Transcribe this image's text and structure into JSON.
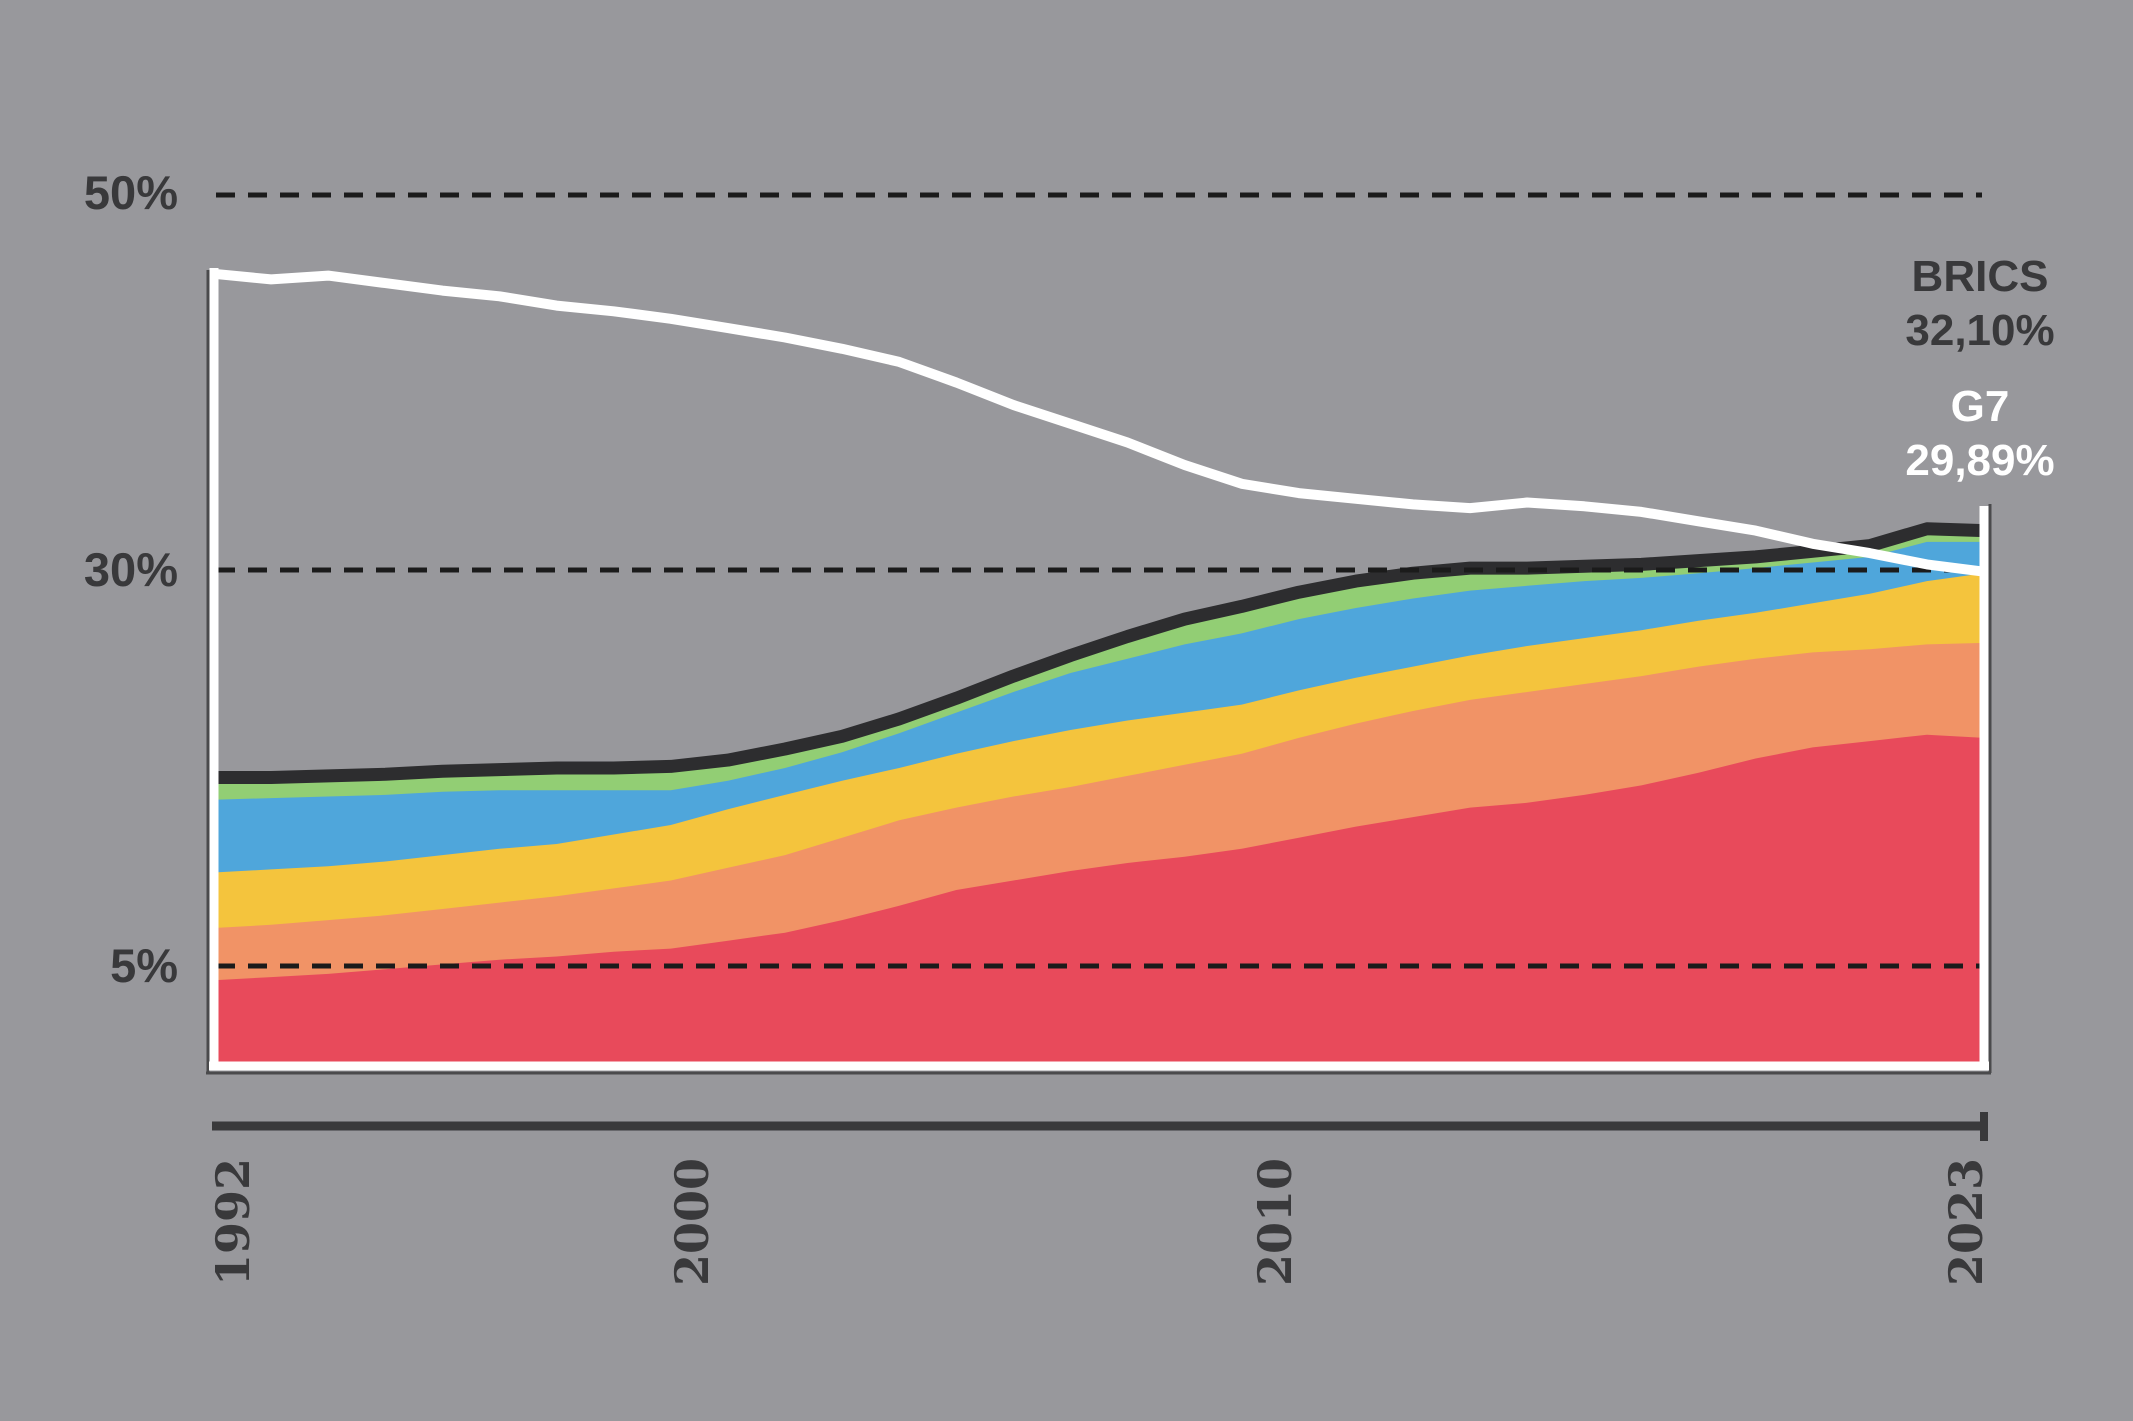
{
  "background": "#98989c",
  "colors": {
    "text_dark": "#39393b",
    "brics_line": "#2d2d2f",
    "g7_line": "#ffffff",
    "gridline": "#1b1b1b",
    "frame_white": "#ffffff",
    "frame_shadow": "#4a4a4c",
    "axis_line": "#39393b"
  },
  "y_axis": {
    "label_50": "50%",
    "label_30": "30%",
    "label_5": "5%"
  },
  "x_axis": {
    "label_1": "1992",
    "label_2": "2000",
    "label_3": "2010",
    "label_4": "2023"
  },
  "legend": {
    "brics_name": "BRICS",
    "brics_value": "32,10%",
    "g7_name": "G7",
    "g7_value": "29,89%",
    "position": "top-right"
  },
  "chart_data": {
    "type": "area",
    "stacked": true,
    "title": "",
    "xlabel": "",
    "ylabel": "",
    "ylim": [
      0,
      50
    ],
    "grid": "dashed-horizontal",
    "gridlines_pct": [
      50,
      30,
      5
    ],
    "x_tick_labels": [
      "1992",
      "2000",
      "2010",
      "2023"
    ],
    "x": [
      1992,
      1993,
      1994,
      1995,
      1996,
      1997,
      1998,
      1999,
      2000,
      2001,
      2002,
      2003,
      2004,
      2005,
      2006,
      2007,
      2008,
      2009,
      2010,
      2011,
      2012,
      2013,
      2014,
      2015,
      2016,
      2017,
      2018,
      2019,
      2020,
      2021,
      2022,
      2023
    ],
    "series": [
      {
        "name": "brics-layer-red",
        "color": "#e84a5b",
        "values": [
          4.1,
          4.3,
          4.5,
          4.8,
          5.1,
          5.4,
          5.6,
          5.9,
          6.1,
          6.6,
          7.1,
          7.9,
          8.8,
          9.8,
          10.4,
          11.0,
          11.5,
          11.9,
          12.4,
          13.1,
          13.8,
          14.4,
          15.0,
          15.3,
          15.8,
          16.4,
          17.2,
          18.1,
          18.8,
          19.2,
          19.6,
          19.4
        ]
      },
      {
        "name": "brics-layer-orange",
        "color": "#f19366",
        "values": [
          3.3,
          3.3,
          3.4,
          3.4,
          3.5,
          3.6,
          3.8,
          4.0,
          4.3,
          4.6,
          4.9,
          5.2,
          5.4,
          5.2,
          5.3,
          5.3,
          5.5,
          5.8,
          6.0,
          6.3,
          6.5,
          6.7,
          6.8,
          7.0,
          7.0,
          6.9,
          6.7,
          6.3,
          6.0,
          5.8,
          5.7,
          6.0
        ]
      },
      {
        "name": "brics-layer-yellow",
        "color": "#f4c43d",
        "values": [
          3.5,
          3.5,
          3.4,
          3.4,
          3.4,
          3.4,
          3.3,
          3.4,
          3.5,
          3.7,
          3.8,
          3.6,
          3.3,
          3.4,
          3.5,
          3.6,
          3.5,
          3.3,
          3.1,
          3.0,
          2.9,
          2.8,
          2.8,
          2.9,
          2.9,
          2.9,
          2.9,
          2.9,
          3.1,
          3.5,
          4.0,
          4.4
        ]
      },
      {
        "name": "brics-layer-blue",
        "color": "#4fa6db",
        "values": [
          4.6,
          4.5,
          4.4,
          4.2,
          4.0,
          3.7,
          3.4,
          2.8,
          2.2,
          1.8,
          1.7,
          1.8,
          2.2,
          2.6,
          3.1,
          3.6,
          3.9,
          4.3,
          4.5,
          4.5,
          4.4,
          4.3,
          4.1,
          3.8,
          3.6,
          3.3,
          3.0,
          2.8,
          2.5,
          2.2,
          2.2,
          1.7
        ]
      },
      {
        "name": "brics-layer-green",
        "color": "#92ce74",
        "values": [
          1.4,
          1.3,
          1.3,
          1.3,
          1.3,
          1.3,
          1.4,
          1.4,
          1.5,
          1.3,
          1.2,
          1.0,
          0.9,
          0.9,
          1.0,
          1.1,
          1.4,
          1.6,
          1.7,
          1.7,
          1.7,
          1.6,
          1.4,
          1.1,
          0.9,
          0.8,
          0.7,
          0.6,
          0.6,
          0.6,
          0.7,
          0.6
        ]
      }
    ],
    "brics_total": [
      16.9,
      16.9,
      17.0,
      17.1,
      17.3,
      17.4,
      17.5,
      17.5,
      17.6,
      18.0,
      18.7,
      19.5,
      20.6,
      21.9,
      23.3,
      24.6,
      25.8,
      26.9,
      27.7,
      28.6,
      29.3,
      29.8,
      30.1,
      30.1,
      30.2,
      30.3,
      30.5,
      30.7,
      31.0,
      31.3,
      32.2,
      32.1
    ],
    "g7": [
      45.8,
      45.5,
      45.7,
      45.3,
      44.9,
      44.6,
      44.1,
      43.8,
      43.4,
      42.9,
      42.4,
      41.8,
      41.1,
      40.0,
      38.8,
      37.8,
      36.8,
      35.6,
      34.6,
      34.1,
      33.8,
      33.5,
      33.3,
      33.6,
      33.4,
      33.1,
      32.6,
      32.1,
      31.4,
      30.9,
      30.3,
      29.89
    ],
    "end_values": {
      "brics": "32,10%",
      "g7": "29,89%"
    }
  }
}
